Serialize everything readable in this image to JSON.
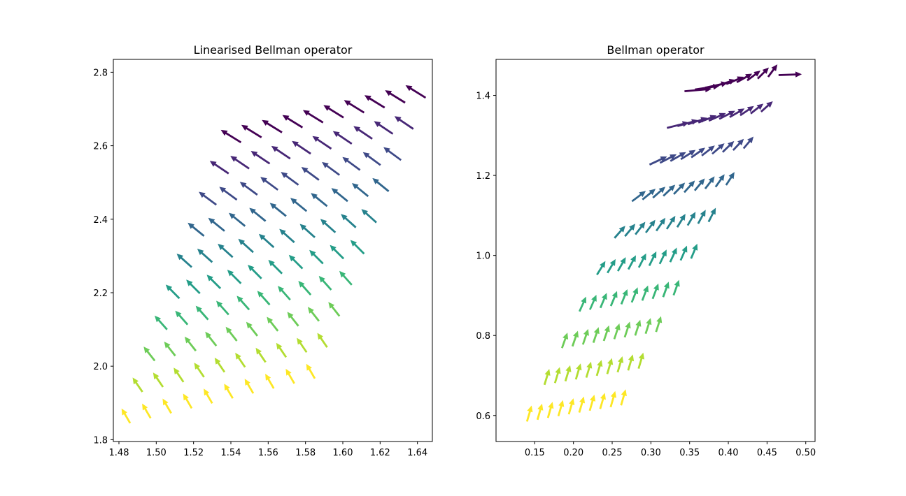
{
  "chart_data": [
    {
      "type": "quiver",
      "title": "Linearised Bellman operator",
      "xlim": [
        1.477,
        1.648
      ],
      "ylim": [
        1.795,
        2.835
      ],
      "xticks": [
        "1.48",
        "1.50",
        "1.52",
        "1.54",
        "1.56",
        "1.58",
        "1.60",
        "1.62",
        "1.64"
      ],
      "yticks": [
        "1.8",
        "2.0",
        "2.2",
        "2.4",
        "2.6",
        "2.8"
      ],
      "xlabel": "",
      "ylabel": "",
      "grid": false,
      "colormap": "viridis",
      "rows": 10,
      "cols": 10,
      "origin": {
        "x0": 1.486,
        "y0": 1.845
      },
      "col_step": {
        "dx": 0.011,
        "dy": 0.0135
      },
      "row_step": {
        "dx": 0.0066,
        "dy": 0.0849
      },
      "arrow": {
        "bottom": {
          "dx": -0.0046,
          "dy": 0.04
        },
        "top": {
          "dx": -0.0108,
          "dy": 0.034
        }
      }
    },
    {
      "type": "quiver",
      "title": "Bellman operator",
      "xlim": [
        0.1,
        0.512
      ],
      "ylim": [
        0.535,
        1.49
      ],
      "xticks": [
        "0.15",
        "0.20",
        "0.25",
        "0.30",
        "0.35",
        "0.40",
        "0.45",
        "0.50"
      ],
      "yticks": [
        "0.6",
        "0.8",
        "1.0",
        "1.2",
        "1.4"
      ],
      "xlabel": "",
      "ylabel": "",
      "grid": false,
      "colormap": "viridis",
      "rows": 10,
      "cols": 10,
      "origin": {
        "x0": 0.14,
        "y0": 0.585
      },
      "col_step": {
        "dx": 0.0135,
        "dy": 0.0045
      },
      "row_step": {
        "dx": 0.0226,
        "dy": 0.0917
      },
      "arrow": {
        "bottom": {
          "dx": 0.006,
          "dy": 0.04
        },
        "top_first": {
          "dx": 0.035,
          "dy": 0.006
        },
        "top_last": {
          "dx": 0.03,
          "dy": 0.004
        }
      }
    }
  ]
}
